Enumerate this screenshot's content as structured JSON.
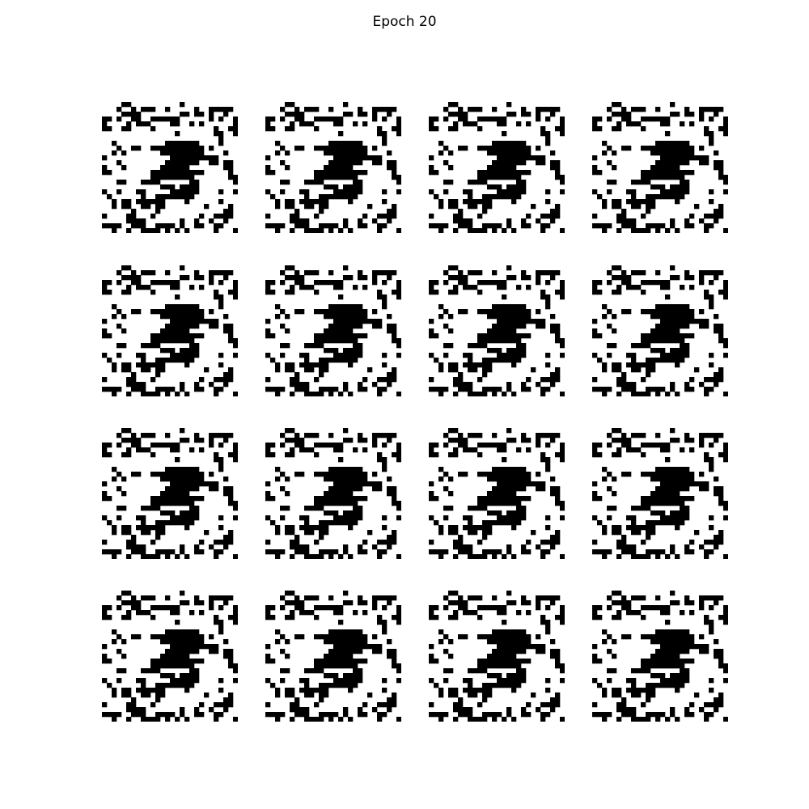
{
  "figure": {
    "title": "Epoch 20",
    "rows": 4,
    "cols": 4,
    "image_resolution": 28,
    "colors": {
      "ink": "#000000",
      "paper": "#ffffff"
    },
    "sample_bitmap": [
      "............................",
      "....##..........#...........",
      "...#..#.###..#.....#..#####.",
      "....####........##.##.#..#..",
      "##.#..##..######......#.#..#",
      "#....#.###....##..#.#......#",
      "##..##....#............#..##",
      "...............#.......##..#",
      "........................#...",
      "..#..........#######....#...",
      "...#..##..###########.#.....",
      "..#.#.......#########....#..",
      "#.............##########....",
      "...#.........#######..##.##.",
      "#...#.......######.......##.",
      "##........###########.....#.",
      "..........#########.......##",
      "...##...####......##.......#",
      "............###.####........",
      "#..#...##.....######....#..#",
      ".#......#..########.........",
      "..#.##.######....#......#...",
      "..#.##..##.##........#....#.",
      "......#....#.............##.",
      "#....##...#.........#..####.",
      ".....####.......#..#..#..#..",
      "####..###..####.#..##..##...",
      "..#..#..####.#.#.#.....#...#"
    ]
  }
}
